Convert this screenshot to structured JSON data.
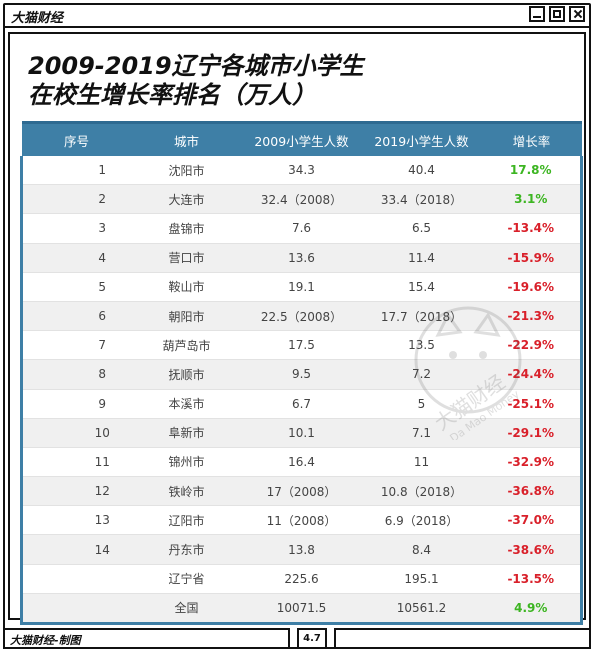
{
  "window": {
    "app_title": "大猫财经"
  },
  "headline": {
    "line1": "2009-2019辽宁各城市小学生",
    "line2": "在校生增长率排名（万人）"
  },
  "table": {
    "headers": [
      "序号",
      "城市",
      "2009小学生人数",
      "2019小学生人数",
      "增长率"
    ],
    "rows": [
      [
        "1",
        "沈阳市",
        "34.3",
        "40.4",
        "17.8%"
      ],
      [
        "2",
        "大连市",
        "32.4（2008）",
        "33.4（2018）",
        "3.1%"
      ],
      [
        "3",
        "盘锦市",
        "7.6",
        "6.5",
        "-13.4%"
      ],
      [
        "4",
        "营口市",
        "13.6",
        "11.4",
        "-15.9%"
      ],
      [
        "5",
        "鞍山市",
        "19.1",
        "15.4",
        "-19.6%"
      ],
      [
        "6",
        "朝阳市",
        "22.5（2008）",
        "17.7（2018）",
        "-21.3%"
      ],
      [
        "7",
        "葫芦岛市",
        "17.5",
        "13.5",
        "-22.9%"
      ],
      [
        "8",
        "抚顺市",
        "9.5",
        "7.2",
        "-24.4%"
      ],
      [
        "9",
        "本溪市",
        "6.7",
        "5",
        "-25.1%"
      ],
      [
        "10",
        "阜新市",
        "10.1",
        "7.1",
        "-29.1%"
      ],
      [
        "11",
        "锦州市",
        "16.4",
        "11",
        "-32.9%"
      ],
      [
        "12",
        "铁岭市",
        "17（2008）",
        "10.8（2018）",
        "-36.8%"
      ],
      [
        "13",
        "辽阳市",
        "11（2008）",
        "6.9（2018）",
        "-37.0%"
      ],
      [
        "14",
        "丹东市",
        "13.8",
        "8.4",
        "-38.6%"
      ],
      [
        "",
        "辽宁省",
        "225.6",
        "195.1",
        "-13.5%"
      ],
      [
        "",
        "全国",
        "10071.5",
        "10561.2",
        "4.9%"
      ]
    ],
    "positive_color": "#3cb521",
    "negative_color": "#d9202a",
    "header_color": "#3e7fa6"
  },
  "watermark": {
    "cn": "大猫财经",
    "en": "Da Mao Money"
  },
  "footer": {
    "credit": "大猫财经-制图",
    "date": "4.7"
  }
}
